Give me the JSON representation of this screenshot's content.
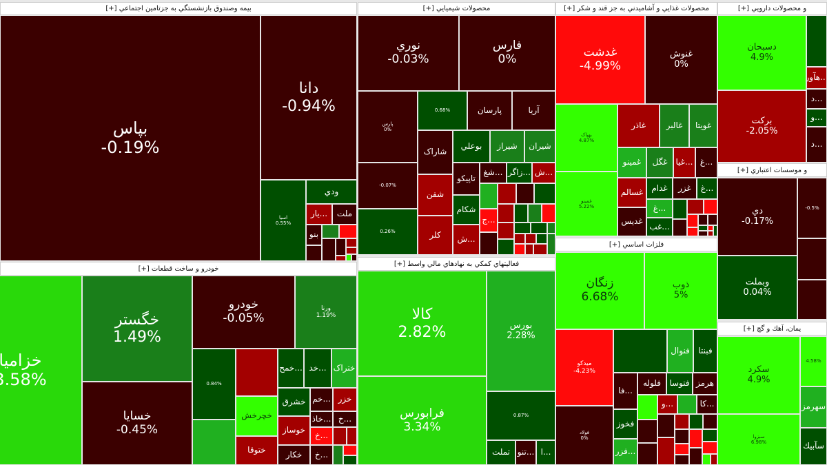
{
  "colors": {
    "M": "#3b0000",
    "R": "#a30000",
    "RR": "#ff0a0a",
    "DG": "#004f00",
    "G": "#1a7f1a",
    "MG": "#20b020",
    "BG": "#29d90a",
    "LIME": "#33ff00"
  },
  "groups": [
    {
      "title": "بيمه وصندوق بازنشستگي به جزتامين اجتماعي [+]",
      "tiles": [
        {
          "label": "بپاس",
          "pct": "-0.19%",
          "color": "M"
        },
        {
          "label": "دانا",
          "pct": "-0.94%",
          "color": "M"
        },
        {
          "label": "اسيا",
          "pct": "0.55%",
          "color": "DG"
        },
        {
          "label": "ودي",
          "pct": "",
          "color": "DG"
        },
        {
          "label": "...يار",
          "pct": "",
          "color": "R"
        },
        {
          "label": "ملت",
          "pct": "",
          "color": "M"
        },
        {
          "label": "بنو",
          "pct": "",
          "color": "M"
        }
      ]
    },
    {
      "title": "خودرو و ساخت قطعات [+]",
      "tiles": [
        {
          "label": "خزاميا",
          "pct": "3.58%",
          "color": "BG"
        },
        {
          "label": "خگستر",
          "pct": "1.49%",
          "color": "G"
        },
        {
          "label": "خسايا",
          "pct": "-0.45%",
          "color": "M"
        },
        {
          "label": "خودرو",
          "pct": "-0.05%",
          "color": "M"
        },
        {
          "label": "ورنا",
          "pct": "1.19%",
          "color": "G"
        },
        {
          "label": "",
          "pct": "0.84%",
          "color": "DG"
        },
        {
          "label": "خچرخش",
          "pct": "",
          "color": "LIME"
        },
        {
          "label": "ختوقا",
          "pct": "",
          "color": "R"
        },
        {
          "label": "...خمح",
          "pct": "",
          "color": "DG"
        },
        {
          "label": "...خد",
          "pct": "",
          "color": "DG"
        },
        {
          "label": "ختراک",
          "pct": "",
          "color": "MG"
        },
        {
          "label": "خشرق",
          "pct": "",
          "color": "DG"
        },
        {
          "label": "...خم",
          "pct": "",
          "color": "M"
        },
        {
          "label": "خزر",
          "pct": "",
          "color": "R"
        },
        {
          "label": "خوساز",
          "pct": "",
          "color": "R"
        },
        {
          "label": "...خاذ",
          "pct": "",
          "color": "M"
        },
        {
          "label": "...خ",
          "pct": "",
          "color": "M"
        },
        {
          "label": "خکار",
          "pct": "",
          "color": "M"
        },
        {
          "label": "...خ",
          "pct": "",
          "color": "RR"
        },
        {
          "label": "...خ",
          "pct": "",
          "color": "M"
        }
      ]
    },
    {
      "title": "محصولات شيميايي [+]",
      "tiles": [
        {
          "label": "نوري",
          "pct": "-0.03%",
          "color": "M"
        },
        {
          "label": "فارس",
          "pct": "0%",
          "color": "M"
        },
        {
          "label": "پارس",
          "pct": "0%",
          "color": "M"
        },
        {
          "label": "",
          "pct": "-0.07%",
          "color": "M"
        },
        {
          "label": "",
          "pct": "0.26%",
          "color": "DG"
        },
        {
          "label": "",
          "pct": "0.68%",
          "color": "DG"
        },
        {
          "label": "پارسان",
          "pct": "",
          "color": "M"
        },
        {
          "label": "آريا",
          "pct": "",
          "color": "M"
        },
        {
          "label": "شاراک",
          "pct": "",
          "color": "M"
        },
        {
          "label": "شفن",
          "pct": "",
          "color": "R"
        },
        {
          "label": "کلر",
          "pct": "",
          "color": "R"
        },
        {
          "label": "بوعلي",
          "pct": "",
          "color": "DG"
        },
        {
          "label": "شيراز",
          "pct": "",
          "color": "G"
        },
        {
          "label": "شيران",
          "pct": "",
          "color": "G"
        },
        {
          "label": "تاپيکو",
          "pct": "",
          "color": "M"
        },
        {
          "label": "...شغ",
          "pct": "",
          "color": "M"
        },
        {
          "label": "...زاگر",
          "pct": "",
          "color": "DG"
        },
        {
          "label": "...ش",
          "pct": "",
          "color": "R"
        },
        {
          "label": "شکام",
          "pct": "",
          "color": "DG"
        },
        {
          "label": "...ش",
          "pct": "",
          "color": "R"
        },
        {
          "label": "...ج",
          "pct": "",
          "color": "RR"
        }
      ]
    },
    {
      "title": "محصولات غذايي و آشاميدني به جز قند و شکر [+]",
      "tiles": [
        {
          "label": "غدشت",
          "pct": "-4.99%",
          "color": "RR"
        },
        {
          "label": "غنوش",
          "pct": "0%",
          "color": "M"
        },
        {
          "label": "بهپاک",
          "pct": "4.87%",
          "color": "LIME"
        },
        {
          "label": "غمينو",
          "pct": "5.22%",
          "color": "LIME"
        },
        {
          "label": "غاذر",
          "pct": "",
          "color": "R"
        },
        {
          "label": "غالبر",
          "pct": "",
          "color": "G"
        },
        {
          "label": "غويتا",
          "pct": "",
          "color": "G"
        },
        {
          "label": "غمينو",
          "pct": "",
          "color": "MG"
        },
        {
          "label": "غگل",
          "pct": "",
          "color": "G"
        },
        {
          "label": "...غيا",
          "pct": "",
          "color": "R"
        },
        {
          "label": "...غ",
          "pct": "",
          "color": "M"
        },
        {
          "label": "غسالم",
          "pct": "",
          "color": "R"
        },
        {
          "label": "غدام",
          "pct": "",
          "color": "DG"
        },
        {
          "label": "غزر",
          "pct": "",
          "color": "M"
        },
        {
          "label": "...غ",
          "pct": "",
          "color": "DG"
        },
        {
          "label": "غديس",
          "pct": "",
          "color": "M"
        },
        {
          "label": "...غ",
          "pct": "",
          "color": "MG"
        },
        {
          "label": "...غب",
          "pct": "",
          "color": "DG"
        }
      ]
    },
    {
      "title": "فلزات اساسي [+]",
      "tiles": [
        {
          "label": "زنگان",
          "pct": "6.68%",
          "color": "LIME"
        },
        {
          "label": "ذوب",
          "pct": "5%",
          "color": "LIME"
        },
        {
          "label": "ميدکو",
          "pct": "-4.23%",
          "color": "RR"
        },
        {
          "label": "فولاد",
          "pct": "0%",
          "color": "M"
        },
        {
          "label": "فنوال",
          "pct": "",
          "color": "MG"
        },
        {
          "label": "فبنتا",
          "pct": "",
          "color": "DG"
        },
        {
          "label": "...فا",
          "pct": "",
          "color": "M"
        },
        {
          "label": "فلوله",
          "pct": "",
          "color": "M"
        },
        {
          "label": "فتوسا",
          "pct": "",
          "color": "DG"
        },
        {
          "label": "هرمز",
          "pct": "",
          "color": "M"
        },
        {
          "label": "فخوز",
          "pct": "",
          "color": "DG"
        },
        {
          "label": "...فزر",
          "pct": "",
          "color": "MG"
        },
        {
          "label": "...و",
          "pct": "",
          "color": "R"
        },
        {
          "label": "...کا",
          "pct": "",
          "color": "M"
        }
      ]
    },
    {
      "title": "و محصولات دارويي [+]",
      "tiles": [
        {
          "label": "دسبحان",
          "pct": "4.9%",
          "color": "LIME"
        },
        {
          "label": "برکت",
          "pct": "-2.05%",
          "color": "R"
        },
        {
          "label": "...هآور",
          "pct": "",
          "color": "R"
        },
        {
          "label": "...د",
          "pct": "",
          "color": "M"
        },
        {
          "label": "...و",
          "pct": "",
          "color": "DG"
        },
        {
          "label": "...د",
          "pct": "",
          "color": "M"
        }
      ]
    },
    {
      "title": "و موسسات اعتباري [+]",
      "tiles": [
        {
          "label": "دي",
          "pct": "-0.17%",
          "color": "M"
        },
        {
          "label": "وبملت",
          "pct": "0.04%",
          "color": "DG"
        },
        {
          "label": "",
          "pct": "-0.5%",
          "color": "M"
        }
      ]
    },
    {
      "title": "يمان، آهك و گچ [+]",
      "tiles": [
        {
          "label": "سکرد",
          "pct": "4.9%",
          "color": "LIME"
        },
        {
          "label": "سبزوا",
          "pct": "6.98%",
          "color": "LIME"
        },
        {
          "label": "",
          "pct": "4.58%",
          "color": "LIME"
        },
        {
          "label": "سهرمز",
          "pct": "",
          "color": "MG"
        },
        {
          "label": "سآبيك",
          "pct": "",
          "color": "DG"
        }
      ]
    },
    {
      "title": "فعاليتهاي کمکي به نهادهاي مالي واسط [+]",
      "tiles": [
        {
          "label": "کالا",
          "pct": "2.82%",
          "color": "BG"
        },
        {
          "label": "فرابورس",
          "pct": "3.34%",
          "color": "BG"
        },
        {
          "label": "بورس",
          "pct": "2.28%",
          "color": "MG"
        },
        {
          "label": "",
          "pct": "0.87%",
          "color": "DG"
        },
        {
          "label": "تملت",
          "pct": "",
          "color": "DG"
        },
        {
          "label": "...تنو",
          "pct": "",
          "color": "M"
        },
        {
          "label": "...ا",
          "pct": "",
          "color": "DG"
        }
      ]
    }
  ]
}
